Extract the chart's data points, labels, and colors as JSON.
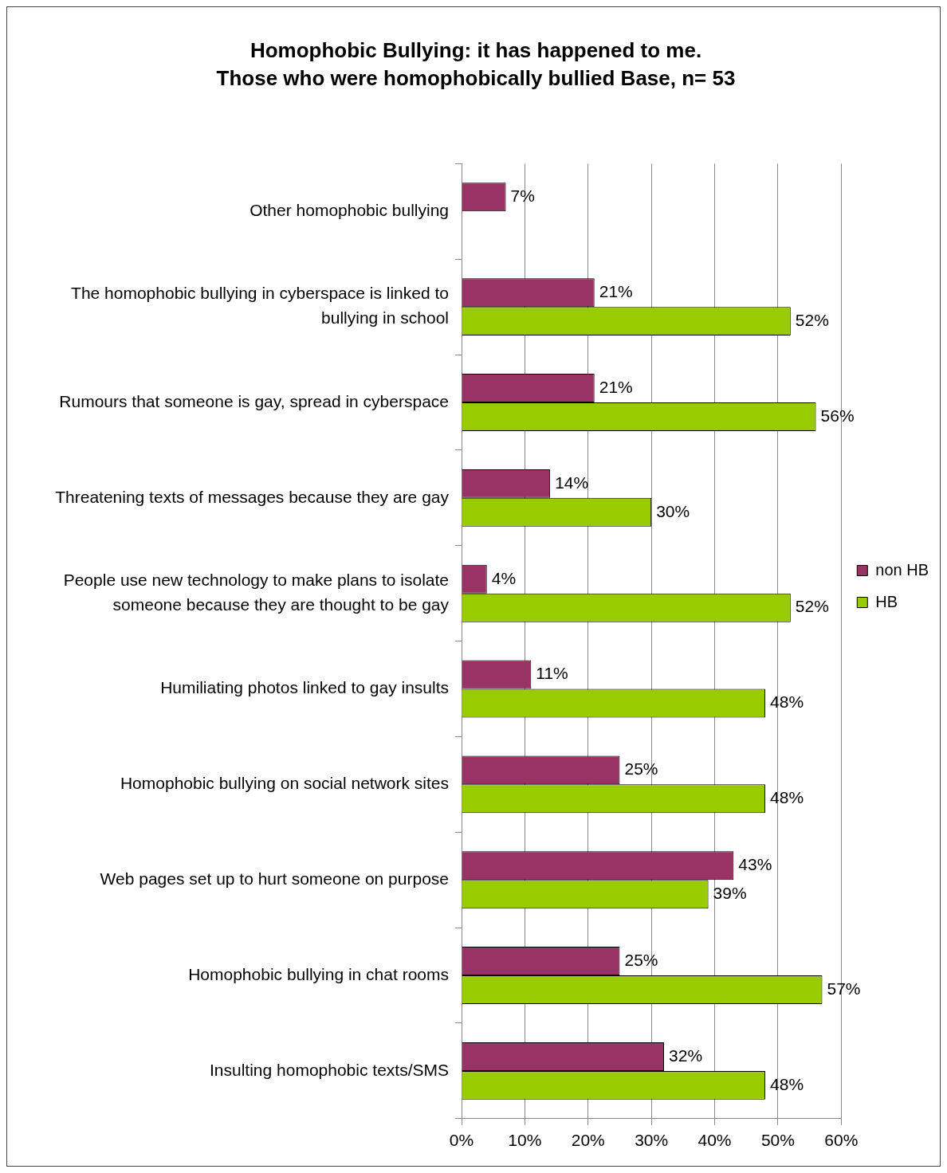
{
  "chart_data": {
    "type": "bar",
    "orientation": "horizontal",
    "title": "Homophobic Bullying: it has happened to me.",
    "subtitle": "Those who were homophobically bullied Base, n= 53",
    "categories": [
      "Other homophobic bullying",
      "The homophobic bullying in cyberspace is linked to bullying in school",
      "Rumours that someone is gay, spread in cyberspace",
      "Threatening texts of messages because they are gay",
      "People use new technology to make plans to isolate someone because they are thought to be gay",
      "Humiliating photos linked to gay insults",
      "Homophobic bullying on social network sites",
      "Web pages set up to hurt someone on purpose",
      "Homophobic bullying in chat rooms",
      "Insulting homophobic texts/SMS"
    ],
    "series": [
      {
        "name": "non HB",
        "color": "#993366",
        "values": [
          7,
          21,
          21,
          14,
          4,
          11,
          25,
          43,
          25,
          32
        ],
        "value_labels": [
          "7%",
          "21%",
          "21%",
          "14%",
          "4%",
          "11%",
          "25%",
          "43%",
          "25%",
          "32%"
        ]
      },
      {
        "name": "HB",
        "color": "#99cc00",
        "values": [
          null,
          52,
          56,
          30,
          52,
          48,
          48,
          39,
          57,
          48
        ],
        "value_labels": [
          null,
          "52%",
          "56%",
          "30%",
          "52%",
          "48%",
          "48%",
          "39%",
          "57%",
          "48%"
        ]
      }
    ],
    "xlim": [
      0,
      60
    ],
    "xticks": [
      {
        "value": 0,
        "label": "0%"
      },
      {
        "value": 10,
        "label": "10%"
      },
      {
        "value": 20,
        "label": "20%"
      },
      {
        "value": 30,
        "label": "30%"
      },
      {
        "value": 40,
        "label": "40%"
      },
      {
        "value": 50,
        "label": "50%"
      },
      {
        "value": 60,
        "label": "60%"
      }
    ],
    "grid": "x",
    "legend": "right"
  }
}
